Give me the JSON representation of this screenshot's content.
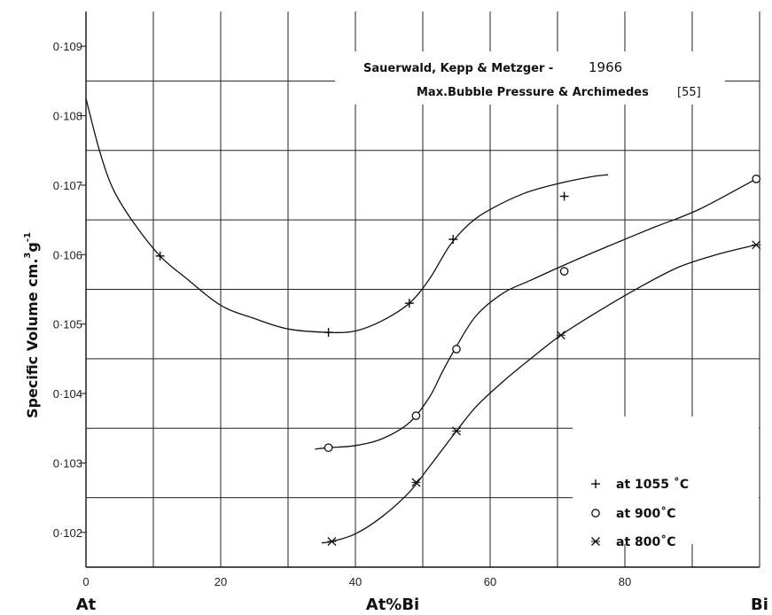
{
  "chart_data": {
    "type": "line",
    "title": "",
    "annotation": {
      "line1_authors": "Sauerwald, Kepp & Metzger -",
      "line1_year": "1966",
      "line2_method": "Max.Bubble Pressure & Archimedes",
      "line2_ref": "[55]"
    },
    "xlabel": "At%Bi",
    "xlabel_left": "At",
    "xlabel_right": "Bi",
    "ylabel": "Specific Volume cm.",
    "ylabel_unit_sup1": "3",
    "ylabel_unit_g": "g",
    "ylabel_unit_sup2": "-1",
    "xlim": [
      0,
      100
    ],
    "ylim": [
      0.1015,
      0.1095
    ],
    "x_ticks": [
      0,
      20,
      40,
      60,
      80
    ],
    "x_tick_labels": [
      "0",
      "20",
      "40",
      "60",
      "80"
    ],
    "y_ticks": [
      0.102,
      0.103,
      0.104,
      0.105,
      0.106,
      0.107,
      0.108,
      0.109
    ],
    "y_tick_labels": [
      "0·102",
      "0·103",
      "0·104",
      "0·105",
      "0·106",
      "0·107",
      "0·108",
      "0·109"
    ],
    "x_grid": [
      0,
      10,
      20,
      30,
      40,
      50,
      60,
      70,
      80,
      90,
      100
    ],
    "y_grid": [
      0.1025,
      0.1035,
      0.1045,
      0.1055,
      0.1065,
      0.1075,
      0.1085
    ],
    "grid": true,
    "legend_position": "bottom-right",
    "series": [
      {
        "name": "at 1055 °C",
        "legend_label": "at  1055 ˚C",
        "marker": "plus",
        "points": [
          [
            11,
            0.10598
          ],
          [
            36,
            0.10488
          ],
          [
            48,
            0.1053
          ],
          [
            54.5,
            0.10622
          ],
          [
            71,
            0.10684
          ]
        ],
        "curve": [
          [
            0,
            0.10825
          ],
          [
            2,
            0.1075
          ],
          [
            4,
            0.10695
          ],
          [
            7,
            0.10647
          ],
          [
            11,
            0.10598
          ],
          [
            15,
            0.10565
          ],
          [
            20,
            0.10527
          ],
          [
            25,
            0.10508
          ],
          [
            30,
            0.10493
          ],
          [
            36,
            0.10488
          ],
          [
            40,
            0.1049
          ],
          [
            44,
            0.10505
          ],
          [
            48,
            0.1053
          ],
          [
            51,
            0.10565
          ],
          [
            54,
            0.10613
          ],
          [
            57,
            0.10645
          ],
          [
            60,
            0.10665
          ],
          [
            65,
            0.10688
          ],
          [
            70,
            0.10702
          ],
          [
            75,
            0.10712
          ],
          [
            77.5,
            0.10715
          ]
        ]
      },
      {
        "name": "at 900 °C",
        "legend_label": "at   900˚C",
        "marker": "circle",
        "points": [
          [
            36,
            0.10322
          ],
          [
            49,
            0.10368
          ],
          [
            55,
            0.10464
          ],
          [
            71,
            0.10576
          ],
          [
            99.5,
            0.10709
          ]
        ],
        "curve": [
          [
            34,
            0.1032
          ],
          [
            36,
            0.10322
          ],
          [
            40,
            0.10325
          ],
          [
            44,
            0.10335
          ],
          [
            48,
            0.10358
          ],
          [
            51,
            0.10395
          ],
          [
            53,
            0.10433
          ],
          [
            55,
            0.10468
          ],
          [
            58,
            0.10513
          ],
          [
            62,
            0.10545
          ],
          [
            66,
            0.10563
          ],
          [
            71,
            0.10585
          ],
          [
            77,
            0.1061
          ],
          [
            84,
            0.10638
          ],
          [
            91,
            0.10665
          ],
          [
            99.5,
            0.10709
          ]
        ]
      },
      {
        "name": "at 800 °C",
        "legend_label": "at   800˚C",
        "marker": "star",
        "points": [
          [
            36.5,
            0.10187
          ],
          [
            49,
            0.10272
          ],
          [
            55,
            0.10346
          ],
          [
            70.5,
            0.10484
          ],
          [
            99.5,
            0.10614
          ]
        ],
        "curve": [
          [
            35,
            0.10185
          ],
          [
            36.5,
            0.10187
          ],
          [
            40,
            0.10198
          ],
          [
            44,
            0.10223
          ],
          [
            48,
            0.10258
          ],
          [
            51,
            0.10295
          ],
          [
            55,
            0.10346
          ],
          [
            58,
            0.10382
          ],
          [
            62,
            0.10418
          ],
          [
            66,
            0.1045
          ],
          [
            70.5,
            0.10484
          ],
          [
            76,
            0.10518
          ],
          [
            82,
            0.10552
          ],
          [
            88,
            0.10582
          ],
          [
            94,
            0.10601
          ],
          [
            99.5,
            0.10614
          ]
        ]
      }
    ]
  },
  "colors": {
    "ink": "#111111",
    "grid": "#222222",
    "background": "#ffffff"
  }
}
